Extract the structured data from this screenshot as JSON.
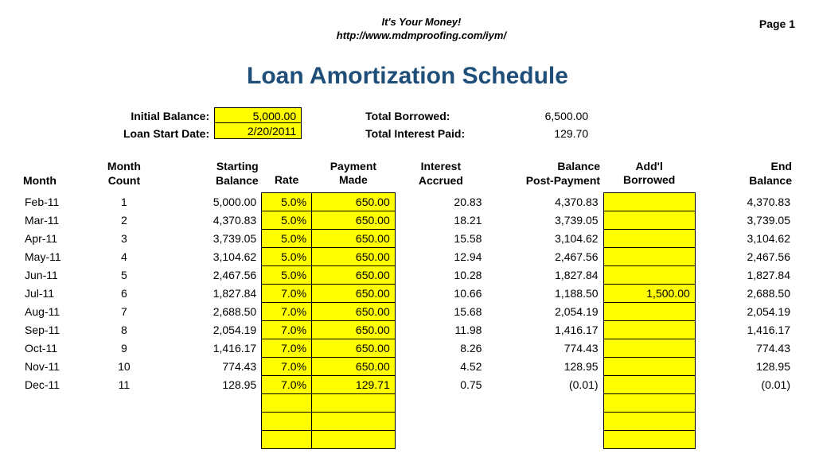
{
  "header": {
    "line1": "It's Your Money!",
    "line2": "http://www.mdmproofing.com/iym/",
    "page_label": "Page 1"
  },
  "title": "Loan Amortization Schedule",
  "summary": {
    "initial_balance_label": "Initial Balance:",
    "initial_balance_value": "5,000.00",
    "loan_start_label": "Loan Start Date:",
    "loan_start_value": "2/20/2011",
    "total_borrowed_label": "Total Borrowed:",
    "total_borrowed_value": "6,500.00",
    "total_interest_label": "Total Interest Paid:",
    "total_interest_value": "129.70"
  },
  "columns": {
    "month": "Month",
    "count": "Month\nCount",
    "starting": "Starting\nBalance",
    "rate": "Rate",
    "payment": "Payment\nMade",
    "interest": "Interest\nAccrued",
    "postbal": "Balance\nPost-Payment",
    "addl": "Add'l\nBorrowed",
    "end": "End\nBalance"
  },
  "style": {
    "highlight_bg": "#ffff00",
    "cell_border": "#000000",
    "title_color": "#1f4e79",
    "font_family": "Arial",
    "page_bg": "#ffffff"
  },
  "rows": [
    {
      "month": "Feb-11",
      "count": "1",
      "start": "5,000.00",
      "rate": "5.0%",
      "pay": "650.00",
      "int": "20.83",
      "postbal": "4,370.83",
      "addl": "",
      "end": "4,370.83"
    },
    {
      "month": "Mar-11",
      "count": "2",
      "start": "4,370.83",
      "rate": "5.0%",
      "pay": "650.00",
      "int": "18.21",
      "postbal": "3,739.05",
      "addl": "",
      "end": "3,739.05"
    },
    {
      "month": "Apr-11",
      "count": "3",
      "start": "3,739.05",
      "rate": "5.0%",
      "pay": "650.00",
      "int": "15.58",
      "postbal": "3,104.62",
      "addl": "",
      "end": "3,104.62"
    },
    {
      "month": "May-11",
      "count": "4",
      "start": "3,104.62",
      "rate": "5.0%",
      "pay": "650.00",
      "int": "12.94",
      "postbal": "2,467.56",
      "addl": "",
      "end": "2,467.56"
    },
    {
      "month": "Jun-11",
      "count": "5",
      "start": "2,467.56",
      "rate": "5.0%",
      "pay": "650.00",
      "int": "10.28",
      "postbal": "1,827.84",
      "addl": "",
      "end": "1,827.84"
    },
    {
      "month": "Jul-11",
      "count": "6",
      "start": "1,827.84",
      "rate": "7.0%",
      "pay": "650.00",
      "int": "10.66",
      "postbal": "1,188.50",
      "addl": "1,500.00",
      "end": "2,688.50"
    },
    {
      "month": "Aug-11",
      "count": "7",
      "start": "2,688.50",
      "rate": "7.0%",
      "pay": "650.00",
      "int": "15.68",
      "postbal": "2,054.19",
      "addl": "",
      "end": "2,054.19"
    },
    {
      "month": "Sep-11",
      "count": "8",
      "start": "2,054.19",
      "rate": "7.0%",
      "pay": "650.00",
      "int": "11.98",
      "postbal": "1,416.17",
      "addl": "",
      "end": "1,416.17"
    },
    {
      "month": "Oct-11",
      "count": "9",
      "start": "1,416.17",
      "rate": "7.0%",
      "pay": "650.00",
      "int": "8.26",
      "postbal": "774.43",
      "addl": "",
      "end": "774.43"
    },
    {
      "month": "Nov-11",
      "count": "10",
      "start": "774.43",
      "rate": "7.0%",
      "pay": "650.00",
      "int": "4.52",
      "postbal": "128.95",
      "addl": "",
      "end": "128.95"
    },
    {
      "month": "Dec-11",
      "count": "11",
      "start": "128.95",
      "rate": "7.0%",
      "pay": "129.71",
      "int": "0.75",
      "postbal": "(0.01)",
      "addl": "",
      "end": "(0.01)"
    }
  ],
  "blank_rows": 3
}
